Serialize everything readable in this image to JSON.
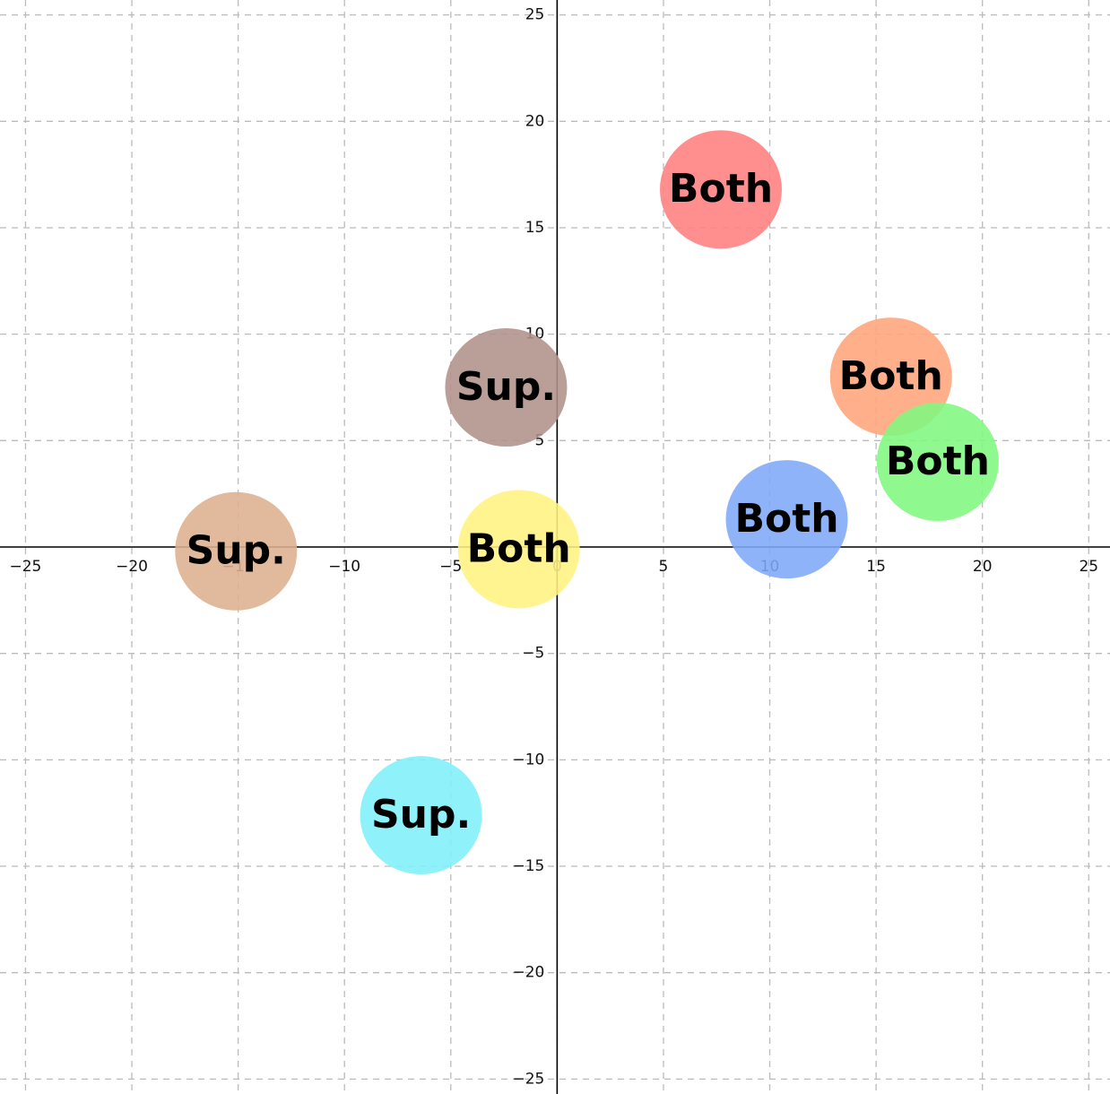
{
  "chart_data": {
    "type": "scatter",
    "x": [
      7.7,
      15.7,
      17.9,
      10.8,
      -1.8,
      -2.4,
      -15.1,
      -6.4
    ],
    "values": [
      16.8,
      8.0,
      4.0,
      1.3,
      -0.1,
      7.5,
      -0.2,
      -12.6
    ],
    "labels": [
      "Both",
      "Both",
      "Both",
      "Both",
      "Both",
      "Sup.",
      "Sup.",
      "Sup."
    ],
    "colors": [
      "#ff7f7f",
      "#ffa57a",
      "#7ff87f",
      "#7fa8f8",
      "#fff27f",
      "#b0928a",
      "#ddb08f",
      "#80f0fb"
    ],
    "xlim": [
      -26.2,
      26.0
    ],
    "ylim": [
      -25.7,
      25.7
    ],
    "xticks": [
      {
        "value": -25,
        "label": "−25"
      },
      {
        "value": -20,
        "label": "−20"
      },
      {
        "value": -15,
        "label": "−15"
      },
      {
        "value": -10,
        "label": "−10"
      },
      {
        "value": -5,
        "label": "−5"
      },
      0,
      5,
      10,
      15,
      20,
      25
    ],
    "yticks": [
      {
        "value": -25,
        "label": "−25"
      },
      {
        "value": -20,
        "label": "−20"
      },
      {
        "value": -15,
        "label": "−15"
      },
      {
        "value": -10,
        "label": "−10"
      },
      {
        "value": -5,
        "label": "−5"
      },
      5,
      10,
      15,
      20,
      25
    ],
    "grid": true
  }
}
